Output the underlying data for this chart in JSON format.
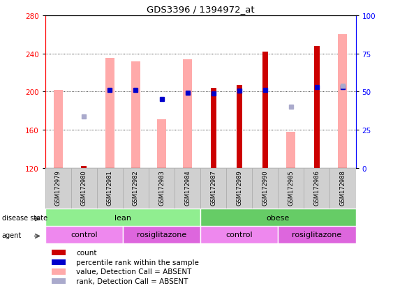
{
  "title": "GDS3396 / 1394972_at",
  "samples": [
    "GSM172979",
    "GSM172980",
    "GSM172981",
    "GSM172982",
    "GSM172983",
    "GSM172984",
    "GSM172987",
    "GSM172989",
    "GSM172990",
    "GSM172985",
    "GSM172986",
    "GSM172988"
  ],
  "ylim_left": [
    120,
    280
  ],
  "ylim_right": [
    0,
    100
  ],
  "yticks_left": [
    120,
    160,
    200,
    240,
    280
  ],
  "yticks_right": [
    0,
    25,
    50,
    75,
    100
  ],
  "red_bar_heights": [
    null,
    122,
    null,
    null,
    null,
    null,
    204,
    207,
    242,
    null,
    248,
    null
  ],
  "pink_bar_heights": [
    202,
    null,
    235,
    232,
    171,
    234,
    null,
    null,
    null,
    158,
    null,
    260
  ],
  "blue_marker_values": [
    null,
    null,
    202,
    202,
    192,
    199,
    198,
    201,
    202,
    null,
    205,
    205
  ],
  "light_blue_marker_values": [
    null,
    174,
    null,
    null,
    null,
    null,
    null,
    null,
    null,
    184,
    null,
    206
  ],
  "red_bar_color": "#cc0000",
  "pink_bar_color": "#ffaaaa",
  "blue_marker_color": "#0000cc",
  "light_blue_marker_color": "#aaaacc",
  "disease_state_groups": [
    {
      "label": "lean",
      "start": 0,
      "end": 5,
      "color": "#90ee90"
    },
    {
      "label": "obese",
      "start": 6,
      "end": 11,
      "color": "#66cc66"
    }
  ],
  "agent_groups": [
    {
      "label": "control",
      "start": 0,
      "end": 2,
      "color": "#ee88ee"
    },
    {
      "label": "rosiglitazone",
      "start": 3,
      "end": 5,
      "color": "#dd66dd"
    },
    {
      "label": "control",
      "start": 6,
      "end": 8,
      "color": "#ee88ee"
    },
    {
      "label": "rosiglitazone",
      "start": 9,
      "end": 11,
      "color": "#dd66dd"
    }
  ],
  "legend_items": [
    {
      "label": "count",
      "color": "#cc0000"
    },
    {
      "label": "percentile rank within the sample",
      "color": "#0000cc"
    },
    {
      "label": "value, Detection Call = ABSENT",
      "color": "#ffaaaa"
    },
    {
      "label": "rank, Detection Call = ABSENT",
      "color": "#aaaacc"
    }
  ],
  "bar_width": 0.35,
  "red_bar_width": 0.22,
  "marker_size": 4
}
